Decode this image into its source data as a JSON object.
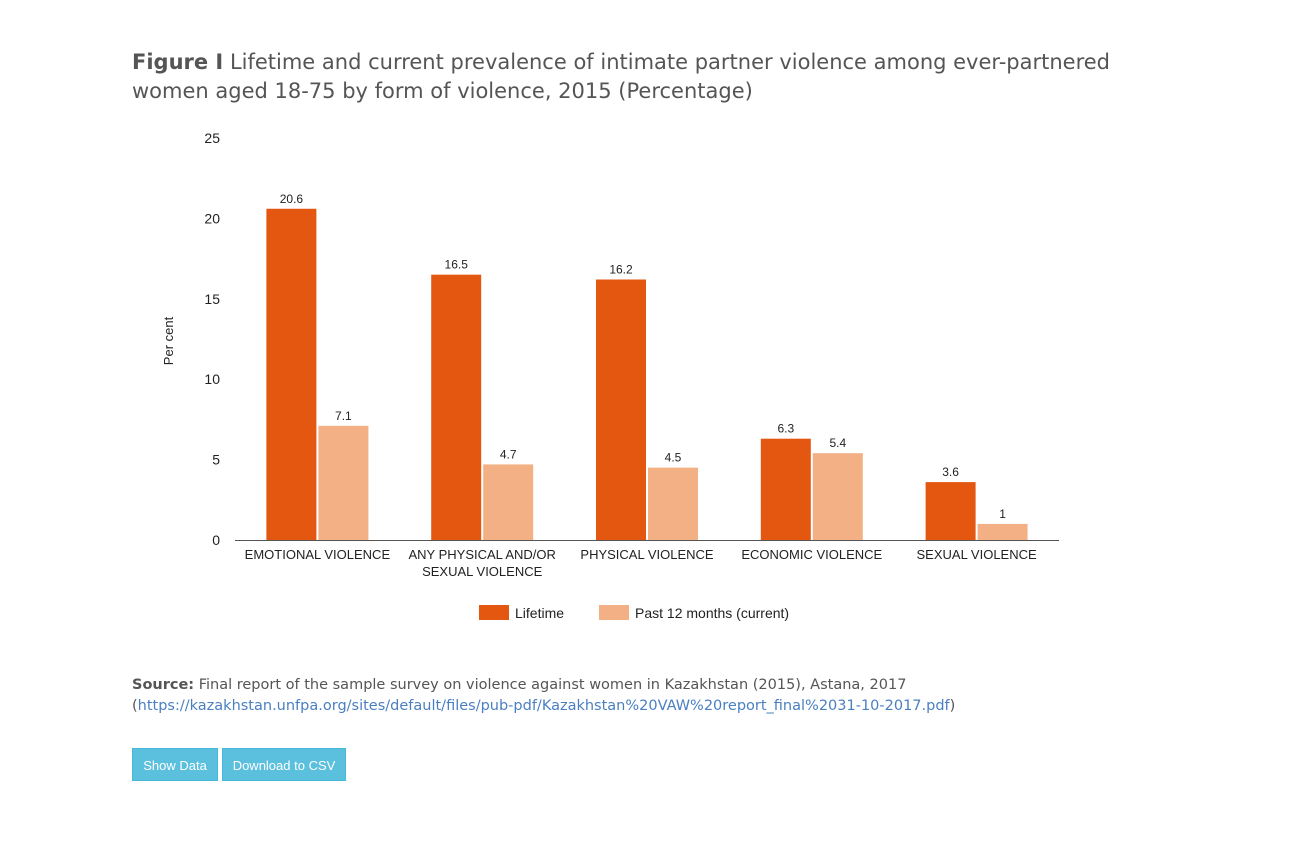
{
  "title": {
    "figure_label": "Figure I",
    "text": "Lifetime and current prevalence of intimate partner violence among ever-partnered women aged 18-75 by form of violence, 2015 (Percentage)"
  },
  "chart_data": {
    "type": "bar",
    "categories": [
      [
        "EMOTIONAL VIOLENCE"
      ],
      [
        "ANY PHYSICAL AND/OR",
        "SEXUAL VIOLENCE"
      ],
      [
        "PHYSICAL VIOLENCE"
      ],
      [
        "ECONOMIC VIOLENCE"
      ],
      [
        "SEXUAL VIOLENCE"
      ]
    ],
    "series": [
      {
        "name": "Lifetime",
        "color": "#e35711",
        "values": [
          20.6,
          16.5,
          16.2,
          6.3,
          3.6
        ]
      },
      {
        "name": "Past 12 months (current)",
        "color": "#f3b084",
        "values": [
          7.1,
          4.7,
          4.5,
          5.4,
          1
        ]
      }
    ],
    "ylabel": "Per cent",
    "xlabel": "",
    "ylim": [
      0,
      25
    ],
    "yticks": [
      0,
      5,
      10,
      15,
      20,
      25
    ],
    "grid": false,
    "legend": "bottom-center"
  },
  "source": {
    "label": "Source:",
    "text": "Final report of the sample survey on violence against women in Kazakhstan (2015), Astana, 2017",
    "link_open": "(",
    "link": "https://kazakhstan.unfpa.org/sites/default/files/pub-pdf/Kazakhstan%20VAW%20report_final%2031-10-2017.pdf",
    "link_close": ")"
  },
  "buttons": {
    "show_data": "Show Data",
    "download_csv": "Download to CSV"
  }
}
